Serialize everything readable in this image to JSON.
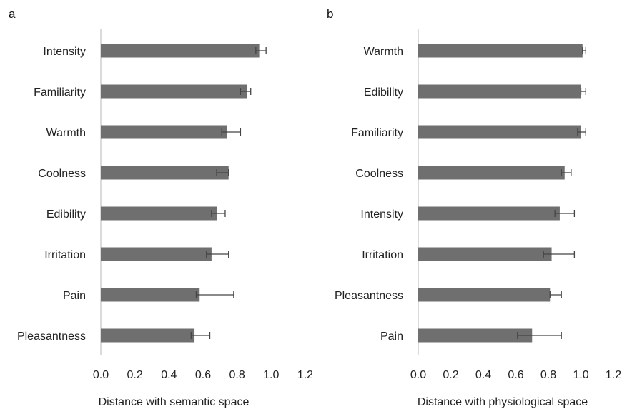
{
  "chart_data": [
    {
      "type": "bar",
      "orientation": "horizontal",
      "panel_label": "a",
      "categories": [
        "Intensity",
        "Familiarity",
        "Warmth",
        "Coolness",
        "Edibility",
        "Irritation",
        "Pain",
        "Pleasantness"
      ],
      "values": [
        0.93,
        0.86,
        0.74,
        0.75,
        0.68,
        0.65,
        0.58,
        0.55
      ],
      "error_low": [
        0.91,
        0.82,
        0.71,
        0.68,
        0.65,
        0.62,
        0.56,
        0.53
      ],
      "error_high": [
        0.97,
        0.88,
        0.82,
        0.75,
        0.73,
        0.75,
        0.78,
        0.64
      ],
      "xlabel": "Distance with semantic space",
      "ylabel": "",
      "xlim": [
        0,
        1.2
      ],
      "xticks": [
        "0.0",
        "0.2",
        "0.4",
        "0.6",
        "0.8",
        "1.0",
        "1.2"
      ],
      "grid": false,
      "bar_color": "#6f6f6f"
    },
    {
      "type": "bar",
      "orientation": "horizontal",
      "panel_label": "b",
      "categories": [
        "Warmth",
        "Edibility",
        "Familiarity",
        "Coolness",
        "Intensity",
        "Irritation",
        "Pleasantness",
        "Pain"
      ],
      "values": [
        1.01,
        1.0,
        1.0,
        0.9,
        0.87,
        0.82,
        0.81,
        0.7
      ],
      "error_low": [
        1.01,
        1.0,
        0.98,
        0.88,
        0.84,
        0.77,
        0.81,
        0.61
      ],
      "error_high": [
        1.03,
        1.03,
        1.03,
        0.94,
        0.96,
        0.96,
        0.88,
        0.88
      ],
      "xlabel": "Distance with physiological  space",
      "ylabel": "",
      "xlim": [
        0,
        1.2
      ],
      "xticks": [
        "0.0",
        "0.2",
        "0.4",
        "0.6",
        "0.8",
        "1.0",
        "1.2"
      ],
      "grid": false,
      "bar_color": "#6f6f6f"
    }
  ]
}
